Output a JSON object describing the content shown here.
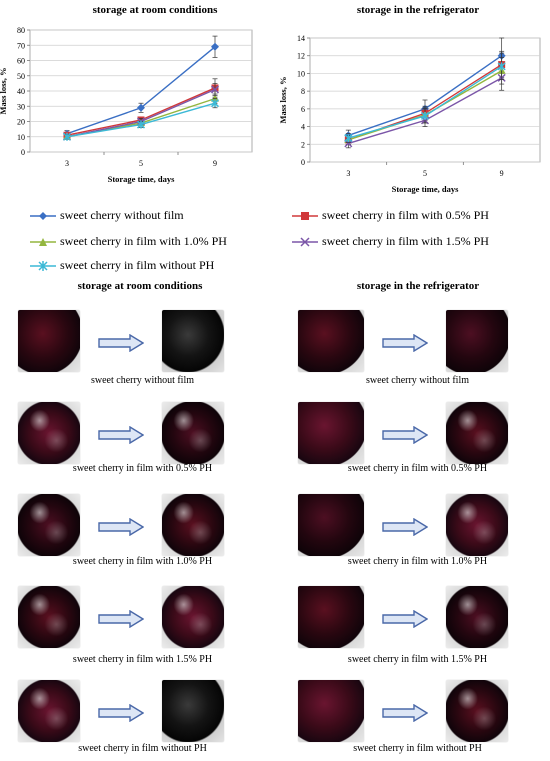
{
  "colors": {
    "without_film": "#3a6fc4",
    "ph05": "#d0383a",
    "ph10": "#93b63f",
    "ph15": "#7b56a8",
    "without_ph": "#3cb9d6",
    "arrow": "#4a68a8",
    "arrow_fill": "#dde6f5",
    "grid": "#cfcfcf"
  },
  "chart_data": [
    {
      "type": "line",
      "title": "storage at room conditions",
      "xlabel": "Storage time, days",
      "ylabel": "Mass loss, %",
      "x": [
        3,
        5,
        9
      ],
      "ylim": [
        0,
        80
      ],
      "yticks": [
        0,
        10,
        20,
        30,
        40,
        50,
        60,
        70,
        80
      ],
      "grid": true,
      "series": [
        {
          "name": "sweet cherry without film",
          "values": [
            12,
            29,
            69
          ],
          "err": [
            2,
            3,
            7
          ]
        },
        {
          "name": "sweet cherry  in film with 0.5% PH",
          "values": [
            11,
            21,
            42
          ],
          "err": [
            1.5,
            2,
            6
          ]
        },
        {
          "name": "sweet cherry  in film with 1.0% PH",
          "values": [
            10,
            19,
            35
          ],
          "err": [
            1.5,
            2,
            3
          ]
        },
        {
          "name": "sweet cherry  in film with 1.5% PH",
          "values": [
            10,
            20,
            41
          ],
          "err": [
            1.5,
            2,
            4
          ]
        },
        {
          "name": "sweet cherry  in film without PH",
          "values": [
            10,
            18,
            32
          ],
          "err": [
            1.5,
            2,
            3
          ]
        }
      ]
    },
    {
      "type": "line",
      "title": "storage in the refrigerator",
      "xlabel": "Storage time, days",
      "ylabel": "Mass loss, %",
      "x": [
        3,
        5,
        9
      ],
      "ylim": [
        0,
        14
      ],
      "yticks": [
        0,
        2,
        4,
        6,
        8,
        10,
        12,
        14
      ],
      "grid": true,
      "series": [
        {
          "name": "sweet cherry without film",
          "values": [
            3,
            6,
            12
          ],
          "err": [
            0.6,
            1,
            2
          ]
        },
        {
          "name": "sweet cherry  in film with 0.5% PH",
          "values": [
            2.5,
            5.5,
            11
          ],
          "err": [
            0.5,
            0.8,
            1.5
          ]
        },
        {
          "name": "sweet cherry  in film with 1.0% PH",
          "values": [
            2.5,
            5.3,
            10.3
          ],
          "err": [
            0.5,
            0.8,
            1.5
          ]
        },
        {
          "name": "sweet cherry  in film with 1.5% PH",
          "values": [
            2.1,
            4.7,
            9.5
          ],
          "err": [
            0.5,
            0.7,
            1.4
          ]
        },
        {
          "name": "sweet cherry  in film without PH",
          "values": [
            2.7,
            5.2,
            10.8
          ],
          "err": [
            0.5,
            0.8,
            1.5
          ]
        }
      ]
    }
  ],
  "legend": [
    {
      "label": "sweet cherry without film",
      "marker": "diamond",
      "color_key": "without_film"
    },
    {
      "label": "sweet cherry  in film with 0.5% PH",
      "marker": "square",
      "color_key": "ph05"
    },
    {
      "label": "sweet cherry  in film with 1.0% PH",
      "marker": "triangle",
      "color_key": "ph10"
    },
    {
      "label": "sweet cherry  in film with 1.5% PH",
      "marker": "x",
      "color_key": "ph15"
    },
    {
      "label": "sweet cherry  in film without PH",
      "marker": "star",
      "color_key": "without_ph"
    }
  ],
  "photos": {
    "left_title": "storage at room conditions",
    "right_title": "storage in the refrigerator",
    "left_captions": [
      "sweet cherry without film",
      "sweet cherry in film with 0.5% PH",
      "sweet cherry in film with 1.0% PH",
      "sweet cherry in film with 1.5% PH",
      "sweet cherry in film without PH"
    ],
    "right_captions": [
      "sweet cherry without film",
      "sweet cherry in film with 0.5% PH",
      "sweet cherry in film with 1.0% PH",
      "sweet cherry in film with 1.5% PH",
      "sweet cherry in film without PH"
    ]
  }
}
